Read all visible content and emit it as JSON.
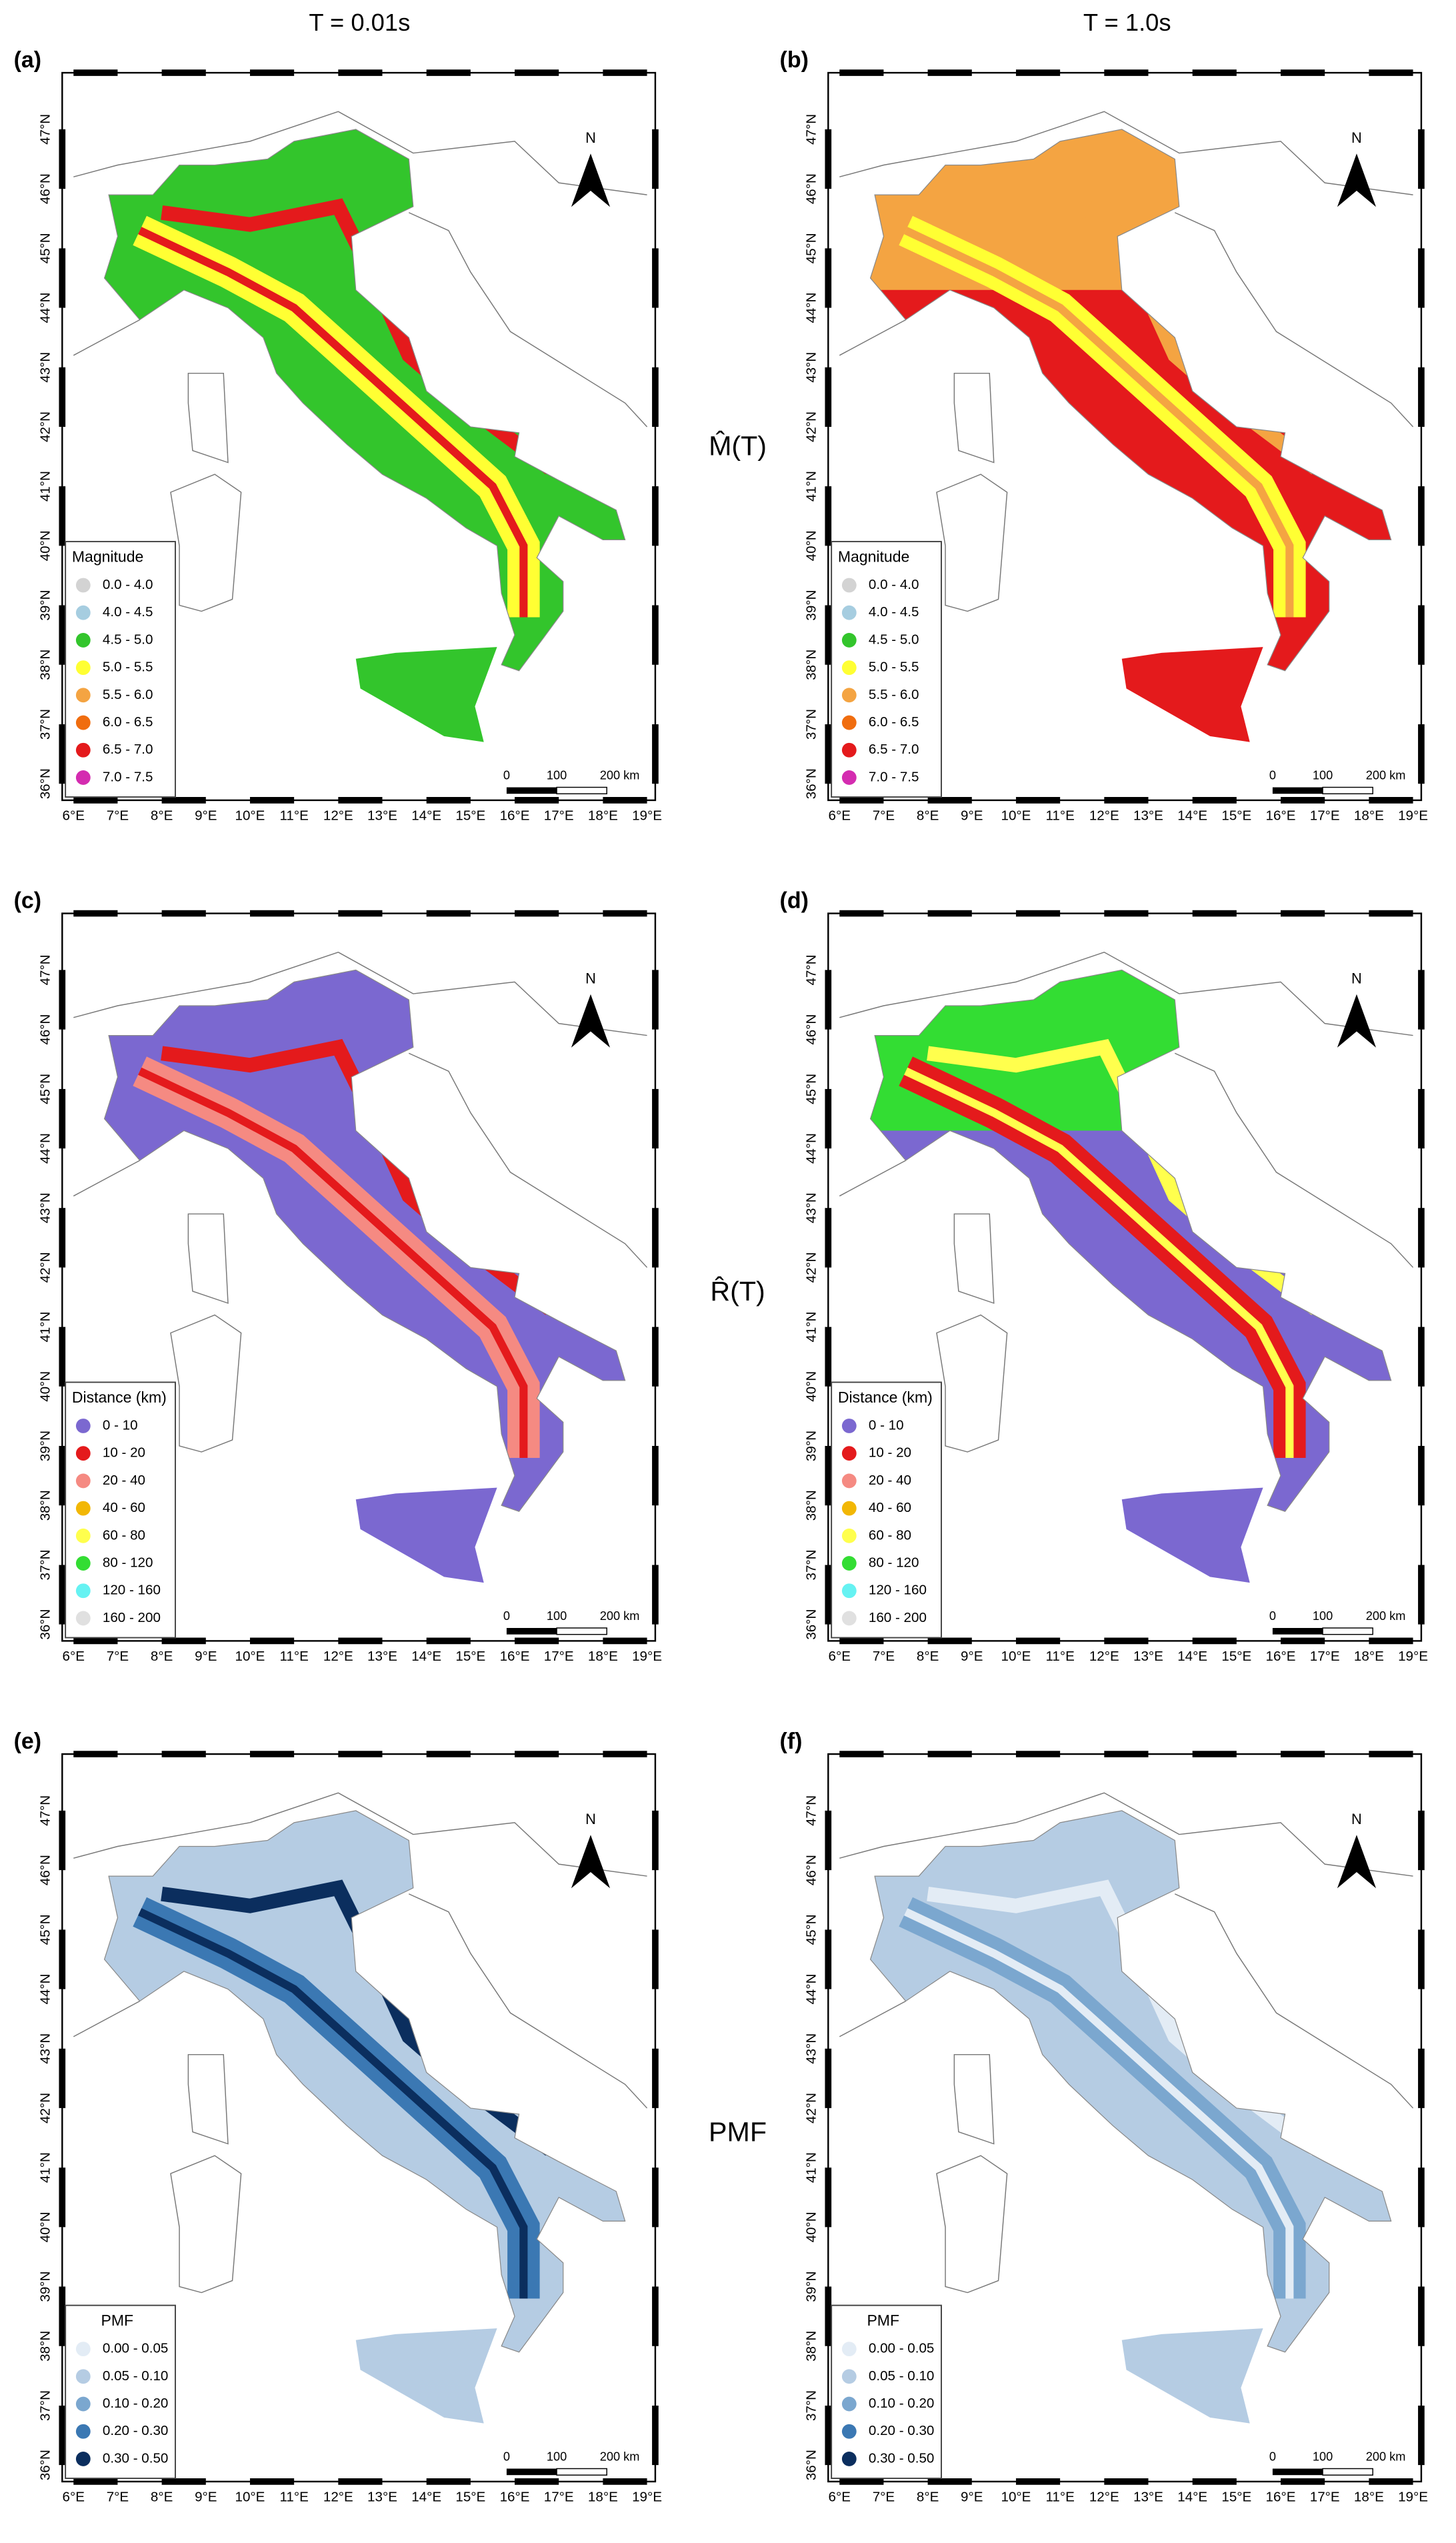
{
  "column_titles": [
    "T = 0.01s",
    "T = 1.0s"
  ],
  "row_labels": [
    "M̂(T)",
    "R̂(T)",
    "PMF"
  ],
  "north": "N",
  "scale_bar": [
    "0",
    "100",
    "200 km"
  ],
  "x_tick_labels": [
    "6°E",
    "7°E",
    "8°E",
    "9°E",
    "10°E",
    "11°E",
    "12°E",
    "13°E",
    "14°E",
    "15°E",
    "16°E",
    "17°E",
    "18°E",
    "19°E"
  ],
  "y_tick_labels": [
    "36°N",
    "37°N",
    "38°N",
    "39°N",
    "40°N",
    "41°N",
    "42°N",
    "43°N",
    "44°N",
    "45°N",
    "46°N",
    "47°N"
  ],
  "legends": [
    {
      "title": "Magnitude",
      "items": [
        {
          "label": "0.0 - 4.0",
          "color": "#d3d3d3"
        },
        {
          "label": "4.0 - 4.5",
          "color": "#a6cde0"
        },
        {
          "label": "4.5 - 5.0",
          "color": "#33c52c"
        },
        {
          "label": "5.0 - 5.5",
          "color": "#ffff33"
        },
        {
          "label": "5.5 - 6.0",
          "color": "#f4a442"
        },
        {
          "label": "6.0 - 6.5",
          "color": "#f06d0f"
        },
        {
          "label": "6.5 - 7.0",
          "color": "#e41a1c"
        },
        {
          "label": "7.0 - 7.5",
          "color": "#d42cb0"
        }
      ]
    },
    {
      "title": "Distance (km)",
      "items": [
        {
          "label": "0 - 10",
          "color": "#7b68d0"
        },
        {
          "label": "10 - 20",
          "color": "#e41a1c"
        },
        {
          "label": "20 - 40",
          "color": "#f58a82"
        },
        {
          "label": "40 - 60",
          "color": "#f2b705"
        },
        {
          "label": "60 - 80",
          "color": "#ffff4d"
        },
        {
          "label": "80 - 120",
          "color": "#33dd33"
        },
        {
          "label": "120 - 160",
          "color": "#66f2f2"
        },
        {
          "label": "160 - 200",
          "color": "#e0e0e0"
        }
      ]
    },
    {
      "title": "PMF",
      "items": [
        {
          "label": "0.00 - 0.05",
          "color": "#e3ecf5"
        },
        {
          "label": "0.05 - 0.10",
          "color": "#b5cce3"
        },
        {
          "label": "0.10 - 0.20",
          "color": "#7ba7cf"
        },
        {
          "label": "0.20 - 0.30",
          "color": "#3b78b3"
        },
        {
          "label": "0.30 - 0.50",
          "color": "#0b2e5e"
        }
      ]
    }
  ],
  "panels": [
    {
      "label": "(a)"
    },
    {
      "label": "(b)"
    },
    {
      "label": "(c)"
    },
    {
      "label": "(d)"
    },
    {
      "label": "(e)"
    },
    {
      "label": "(f)"
    }
  ]
}
